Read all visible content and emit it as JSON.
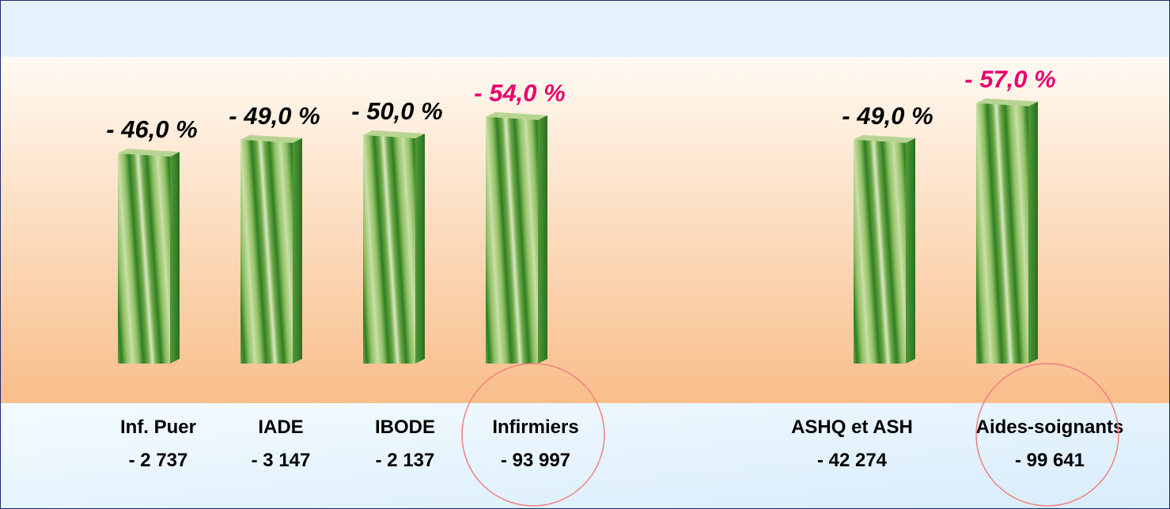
{
  "chart_data": {
    "type": "bar",
    "categories": [
      "Inf. Puer",
      "IADE",
      "IBODE",
      "Infirmiers",
      "ASHQ et ASH",
      "Aides-soignants"
    ],
    "count_labels": [
      "- 2 737",
      "- 3 147",
      "- 2 137",
      "- 93 997",
      "- 42 274",
      "- 99 641"
    ],
    "values": [
      -46.0,
      -49.0,
      -50.0,
      -54.0,
      -49.0,
      -57.0
    ],
    "value_labels": [
      "- 46,0 %",
      "- 49,0 %",
      "- 50,0 %",
      "- 54,0 %",
      "- 49,0 %",
      "- 57,0 %"
    ],
    "value_label_colors": [
      "#000000",
      "#000000",
      "#000000",
      "#e8006e",
      "#000000",
      "#e8006e"
    ],
    "circled": [
      false,
      false,
      false,
      true,
      false,
      true
    ],
    "color": "#3f8f2f"
  }
}
